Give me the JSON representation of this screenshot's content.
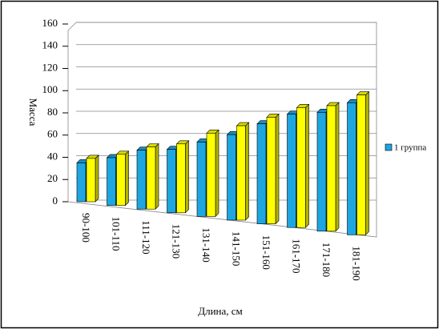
{
  "chart_data": {
    "type": "bar3d",
    "y_label": "Масса",
    "x_label": "Длина, см",
    "categories": [
      "90-100",
      "101-110",
      "111-120",
      "121-130",
      "131-140",
      "141-150",
      "151-160",
      "161-170",
      "171-180",
      "181-190"
    ],
    "series": [
      {
        "name": "1 группа",
        "color": "#1ea6e0",
        "values": [
          35,
          43,
          53,
          57,
          67,
          77,
          90,
          102,
          107,
          119
        ]
      },
      {
        "color": "#ffff00",
        "values": [
          39,
          46,
          56,
          62,
          75,
          85,
          96,
          108,
          113,
          126
        ]
      }
    ],
    "ylim": [
      0,
      160
    ],
    "yticks": [
      0,
      20,
      40,
      60,
      80,
      100,
      120,
      140,
      160
    ],
    "grid": true
  }
}
